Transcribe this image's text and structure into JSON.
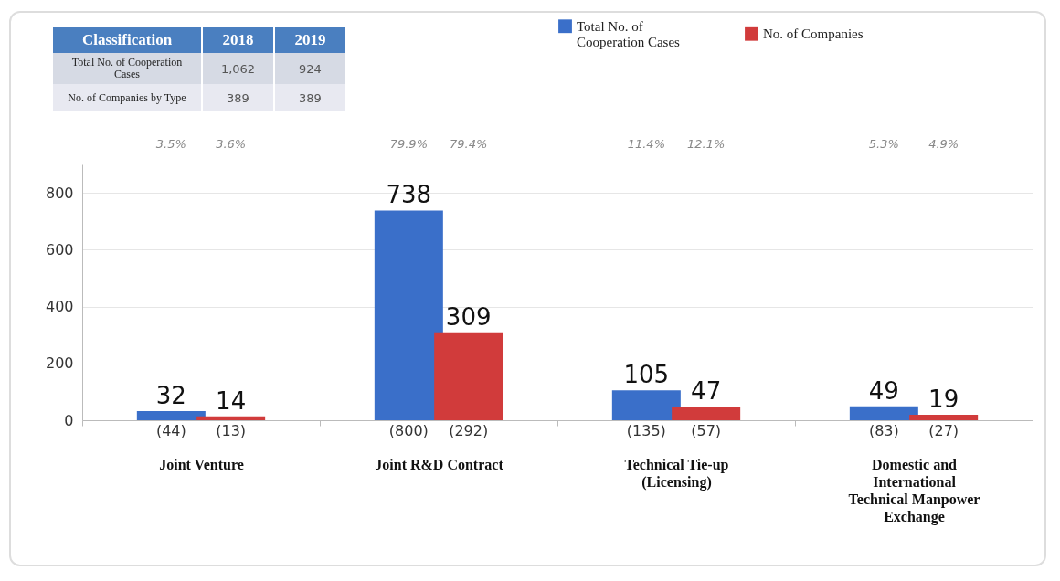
{
  "chart_data": [
    {
      "type": "other",
      "annotations": [
        "Classification",
        "2018",
        "2019",
        "Total No. of Cooperation Cases",
        "1,062",
        "924",
        "No. of Companies by Type",
        "389",
        "389"
      ]
    },
    {
      "type": "bar",
      "categories": [
        "Joint Venture",
        "Joint R&D Contract",
        "Technical Tie-up (Licensing)",
        "Domestic and International Technical Manpower Exchange"
      ],
      "series": [
        {
          "name": "Total No. of Cooperation Cases",
          "color": "#3a6fc9",
          "values": [
            32,
            738,
            105,
            49
          ]
        },
        {
          "name": "No. of Companies",
          "color": "#d13b3b",
          "values": [
            14,
            309,
            47,
            19
          ]
        }
      ],
      "ylim": [
        0,
        900
      ],
      "yticks": [
        0,
        200,
        400,
        600,
        800
      ],
      "grid": "y",
      "legend": "top",
      "data_labels": true,
      "annotations": [
        "3.5%",
        "3.6%",
        "79.9%",
        "79.4%",
        "11.4%",
        "12.1%",
        "5.3%",
        "4.9%",
        "(44)",
        "(13)",
        "(800)",
        "(292)",
        "(135)",
        "(57)",
        "(83)",
        "(27)"
      ]
    }
  ]
}
